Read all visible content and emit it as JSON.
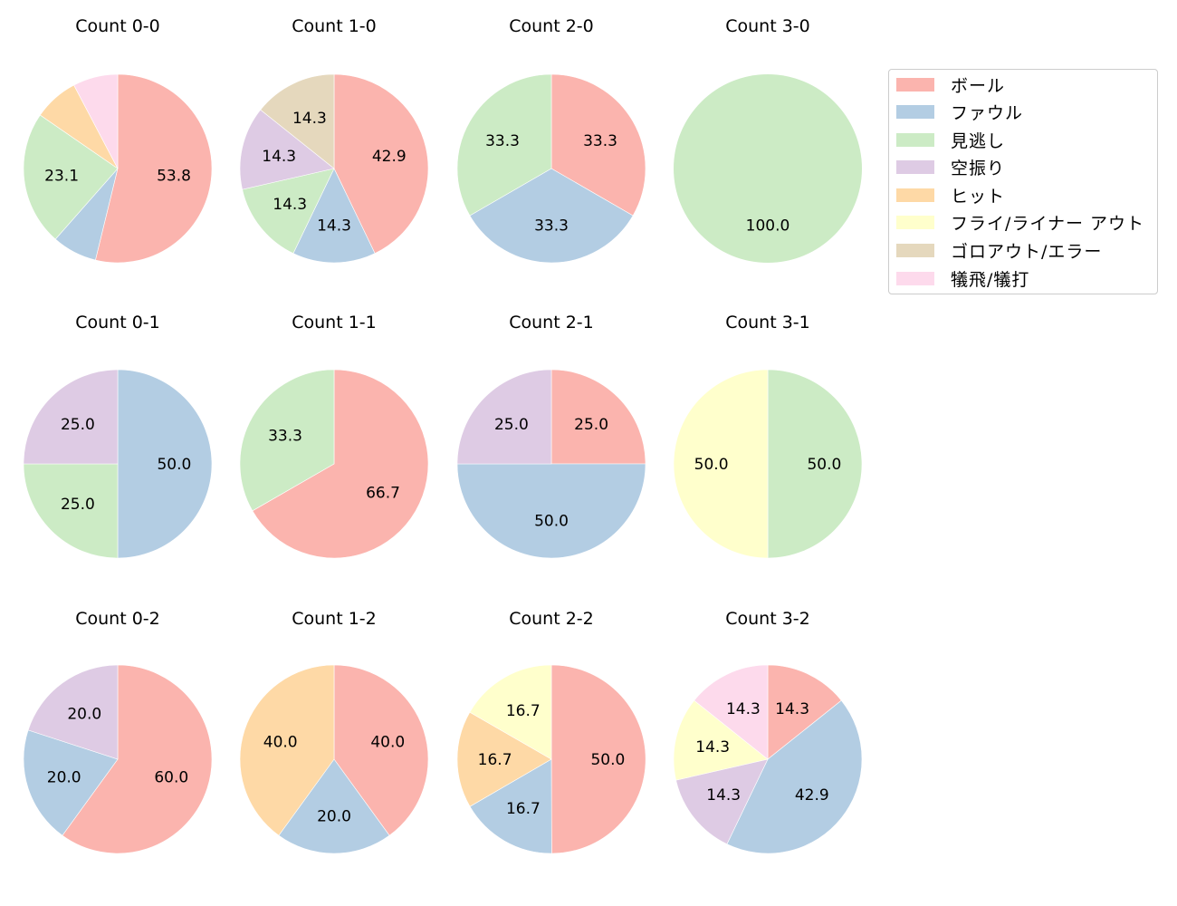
{
  "chart_data": {
    "type": "pie",
    "title": "",
    "categories": [
      "ボール",
      "ファウル",
      "見逃し",
      "空振り",
      "ヒット",
      "フライ/ライナー アウト",
      "ゴロアウト/エラー",
      "犠飛/犠打"
    ],
    "colors": [
      "#fbb4ae",
      "#b3cde3",
      "#ccebc5",
      "#decbe4",
      "#fed9a6",
      "#ffffcc",
      "#e5d8bd",
      "#fddaec"
    ],
    "legend_position": "upper right",
    "label_format": "%.1f (labels hidden for small slices)",
    "charts": [
      {
        "title": "Count 0-0",
        "row": 0,
        "col": 0,
        "values": [
          53.8,
          7.7,
          23.1,
          0,
          7.7,
          0,
          0,
          7.7
        ],
        "labels": [
          "53.8",
          "",
          "23.1",
          "",
          "",
          "",
          "",
          ""
        ]
      },
      {
        "title": "Count 1-0",
        "row": 0,
        "col": 1,
        "values": [
          42.9,
          14.3,
          14.3,
          14.3,
          0,
          0,
          14.3,
          0
        ],
        "labels": [
          "42.9",
          "14.3",
          "14.3",
          "14.3",
          "",
          "",
          "14.3",
          ""
        ]
      },
      {
        "title": "Count 2-0",
        "row": 0,
        "col": 2,
        "values": [
          33.3,
          33.3,
          33.3,
          0,
          0,
          0,
          0,
          0
        ],
        "labels": [
          "33.3",
          "33.3",
          "33.3",
          "",
          "",
          "",
          "",
          ""
        ]
      },
      {
        "title": "Count 3-0",
        "row": 0,
        "col": 3,
        "values": [
          0,
          0,
          100.0,
          0,
          0,
          0,
          0,
          0
        ],
        "labels": [
          "",
          "",
          "100.0",
          "",
          "",
          "",
          "",
          ""
        ]
      },
      {
        "title": "Count 0-1",
        "row": 1,
        "col": 0,
        "values": [
          0,
          50.0,
          25.0,
          25.0,
          0,
          0,
          0,
          0
        ],
        "labels": [
          "",
          "50.0",
          "25.0",
          "25.0",
          "",
          "",
          "",
          ""
        ]
      },
      {
        "title": "Count 1-1",
        "row": 1,
        "col": 1,
        "values": [
          66.7,
          0,
          33.3,
          0,
          0,
          0,
          0,
          0
        ],
        "labels": [
          "66.7",
          "",
          "33.3",
          "",
          "",
          "",
          "",
          ""
        ]
      },
      {
        "title": "Count 2-1",
        "row": 1,
        "col": 2,
        "values": [
          25.0,
          50.0,
          0,
          25.0,
          0,
          0,
          0,
          0
        ],
        "labels": [
          "25.0",
          "50.0",
          "",
          "25.0",
          "",
          "",
          "",
          ""
        ]
      },
      {
        "title": "Count 3-1",
        "row": 1,
        "col": 3,
        "values": [
          0,
          0,
          50.0,
          0,
          0,
          50.0,
          0,
          0
        ],
        "labels": [
          "",
          "",
          "50.0",
          "",
          "",
          "50.0",
          "",
          ""
        ]
      },
      {
        "title": "Count 0-2",
        "row": 2,
        "col": 0,
        "values": [
          60.0,
          20.0,
          0,
          20.0,
          0,
          0,
          0,
          0
        ],
        "labels": [
          "60.0",
          "20.0",
          "",
          "20.0",
          "",
          "",
          "",
          ""
        ]
      },
      {
        "title": "Count 1-2",
        "row": 2,
        "col": 1,
        "values": [
          40.0,
          20.0,
          0,
          0,
          40.0,
          0,
          0,
          0
        ],
        "labels": [
          "40.0",
          "20.0",
          "",
          "",
          "40.0",
          "",
          "",
          ""
        ]
      },
      {
        "title": "Count 2-2",
        "row": 2,
        "col": 2,
        "values": [
          50.0,
          16.7,
          0,
          0,
          16.7,
          16.7,
          0,
          0
        ],
        "labels": [
          "50.0",
          "16.7",
          "",
          "",
          "16.7",
          "16.7",
          "",
          ""
        ]
      },
      {
        "title": "Count 3-2",
        "row": 2,
        "col": 3,
        "values": [
          14.3,
          42.9,
          0,
          14.3,
          0,
          14.3,
          0,
          14.3
        ],
        "labels": [
          "14.3",
          "42.9",
          "",
          "14.3",
          "",
          "14.3",
          "",
          "14.3"
        ]
      }
    ]
  },
  "legend": {
    "items": [
      {
        "label": "ボール",
        "color": "#fbb4ae"
      },
      {
        "label": "ファウル",
        "color": "#b3cde3"
      },
      {
        "label": "見逃し",
        "color": "#ccebc5"
      },
      {
        "label": "空振り",
        "color": "#decbe4"
      },
      {
        "label": "ヒット",
        "color": "#fed9a6"
      },
      {
        "label": "フライ/ライナー アウト",
        "color": "#ffffcc"
      },
      {
        "label": "ゴロアウト/エラー",
        "color": "#e5d8bd"
      },
      {
        "label": "犠飛/犠打",
        "color": "#fddaec"
      }
    ]
  }
}
